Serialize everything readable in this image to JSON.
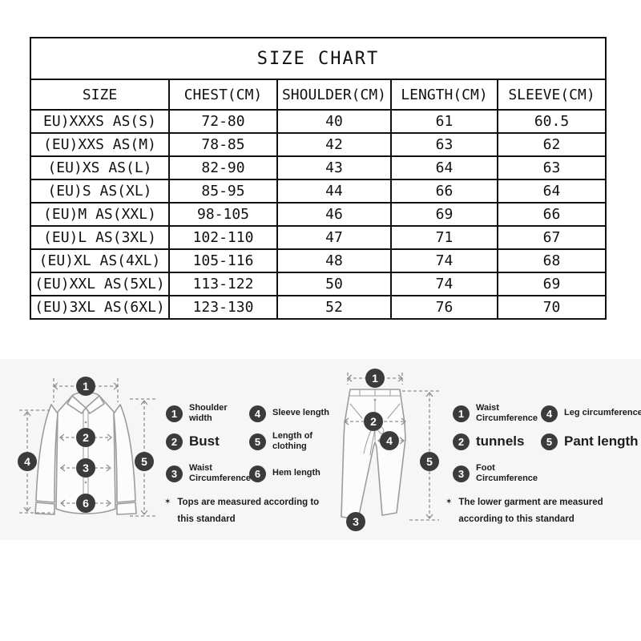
{
  "size_chart": {
    "title": "SIZE CHART",
    "columns": [
      "SIZE",
      "CHEST(CM)",
      "SHOULDER(CM)",
      "LENGTH(CM)",
      "SLEEVE(CM)"
    ],
    "rows": [
      {
        "size": "EU)XXXS AS(S)",
        "chest": "72-80",
        "shoulder": "40",
        "length": "61",
        "sleeve": "60.5"
      },
      {
        "size": "(EU)XXS AS(M)",
        "chest": "78-85",
        "shoulder": "42",
        "length": "63",
        "sleeve": "62"
      },
      {
        "size": "(EU)XS AS(L)",
        "chest": "82-90",
        "shoulder": "43",
        "length": "64",
        "sleeve": "63"
      },
      {
        "size": "(EU)S AS(XL)",
        "chest": "85-95",
        "shoulder": "44",
        "length": "66",
        "sleeve": "64"
      },
      {
        "size": "(EU)M AS(XXL)",
        "chest": "98-105",
        "shoulder": "46",
        "length": "69",
        "sleeve": "66"
      },
      {
        "size": "(EU)L AS(3XL)",
        "chest": "102-110",
        "shoulder": "47",
        "length": "71",
        "sleeve": "67"
      },
      {
        "size": "(EU)XL AS(4XL)",
        "chest": "105-116",
        "shoulder": "48",
        "length": "74",
        "sleeve": "68"
      },
      {
        "size": "(EU)XXL AS(5XL)",
        "chest": "113-122",
        "shoulder": "50",
        "length": "74",
        "sleeve": "69"
      },
      {
        "size": "(EU)3XL AS(6XL)",
        "chest": "123-130",
        "shoulder": "52",
        "length": "76",
        "sleeve": "70"
      }
    ]
  },
  "tops_guide": {
    "legend": [
      {
        "num": "1",
        "label": "Shoulder width",
        "size": "small"
      },
      {
        "num": "2",
        "label": "Bust",
        "size": "large"
      },
      {
        "num": "3",
        "label": "Waist\nCircumference",
        "size": "small"
      },
      {
        "num": "4",
        "label": "Sleeve length",
        "size": "small"
      },
      {
        "num": "5",
        "label": "Length of\nclothing",
        "size": "small"
      },
      {
        "num": "6",
        "label": "Hem length",
        "size": "small"
      }
    ],
    "footnote_marker": "✶",
    "footnote": "Tops are measured according to\nthis standard"
  },
  "bottoms_guide": {
    "legend": [
      {
        "num": "1",
        "label": "Waist\nCircumference",
        "size": "small"
      },
      {
        "num": "2",
        "label": "tunnels",
        "size": "large"
      },
      {
        "num": "3",
        "label": "Foot\nCircumference",
        "size": "small"
      },
      {
        "num": "4",
        "label": "Leg circumference",
        "size": "small"
      },
      {
        "num": "5",
        "label": "Pant length",
        "size": "large"
      }
    ],
    "footnote_marker": "✶",
    "footnote": "The lower garment are measured\naccording to this standard"
  },
  "colors": {
    "marker_bg": "#3b3b3b",
    "marker_text": "#ffffff",
    "table_border": "#111111",
    "diagram_line": "#9c9c9c",
    "arrow_line": "#8f8f8f"
  }
}
